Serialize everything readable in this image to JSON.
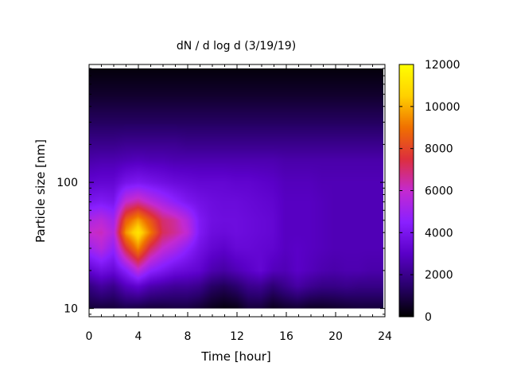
{
  "chart_data": {
    "type": "heatmap",
    "title": "dN / d log d (3/19/19)",
    "xlabel": "Time [hour]",
    "ylabel": "Particle size [nm]",
    "xlim": [
      0,
      24
    ],
    "ylim": [
      8.6,
      860
    ],
    "y_scale": "log",
    "x_ticks": [
      0,
      4,
      8,
      12,
      16,
      20,
      24
    ],
    "x_tick_labels": [
      "0",
      "4",
      "8",
      "12",
      "16",
      "20",
      "24"
    ],
    "y_ticks": [
      10,
      100
    ],
    "y_tick_labels": [
      "10",
      "100"
    ],
    "colorbar": {
      "range": [
        0,
        12000
      ],
      "ticks": [
        0,
        2000,
        4000,
        6000,
        8000,
        10000,
        12000
      ],
      "tick_labels": [
        "0",
        "2000",
        "4000",
        "6000",
        "8000",
        "10000",
        "12000"
      ],
      "colormap": [
        "#000000",
        "#2a006e",
        "#5a00c8",
        "#8a20ff",
        "#c42ad0",
        "#dd2f3d",
        "#f07000",
        "#ffd000",
        "#ffff00"
      ]
    },
    "grid": false,
    "time_hours": [
      0,
      1,
      2,
      3,
      4,
      5,
      6,
      7,
      8,
      9,
      10,
      11,
      12,
      13,
      14,
      15,
      16,
      17,
      18,
      19,
      20,
      21,
      22,
      23,
      24
    ],
    "size_nm": [
      10,
      15,
      20,
      30,
      40,
      50,
      70,
      100,
      150,
      200,
      300,
      500,
      800
    ],
    "values": [
      [
        800,
        800,
        800,
        1000,
        900,
        800,
        800,
        900,
        900,
        700,
        400,
        200,
        300,
        800,
        800,
        400,
        600,
        700,
        500,
        500,
        600,
        700,
        800,
        800,
        800
      ],
      [
        1800,
        2300,
        2000,
        2800,
        3200,
        2600,
        2400,
        2200,
        2200,
        2000,
        1400,
        1200,
        1500,
        2000,
        2100,
        1600,
        2000,
        2400,
        2100,
        1900,
        1900,
        2000,
        1900,
        1900,
        1900
      ],
      [
        3200,
        3700,
        3400,
        4400,
        5800,
        4600,
        4100,
        3600,
        3400,
        3200,
        2600,
        2400,
        2700,
        3000,
        3300,
        2800,
        2700,
        3000,
        2800,
        2600,
        2500,
        2600,
        2600,
        2500,
        2500
      ],
      [
        5000,
        5600,
        4700,
        7500,
        9400,
        7200,
        6000,
        5400,
        4600,
        3800,
        3300,
        3100,
        3400,
        3400,
        3300,
        3200,
        2900,
        3000,
        2900,
        2800,
        2700,
        2700,
        2700,
        2700,
        2700
      ],
      [
        6000,
        6200,
        5500,
        9600,
        11200,
        9200,
        7200,
        6600,
        5900,
        4200,
        3600,
        3500,
        3600,
        3500,
        3400,
        3300,
        2900,
        2900,
        2900,
        2800,
        2700,
        2700,
        2700,
        2700,
        2700
      ],
      [
        5400,
        5700,
        5100,
        8600,
        9800,
        8400,
        7000,
        6500,
        5600,
        4200,
        3700,
        3600,
        3600,
        3500,
        3400,
        3300,
        2900,
        2900,
        2900,
        2800,
        2700,
        2700,
        2700,
        2700,
        2700
      ],
      [
        4000,
        4200,
        4000,
        6000,
        6500,
        5800,
        5200,
        4600,
        4100,
        3800,
        3600,
        3500,
        3500,
        3400,
        3300,
        3200,
        2900,
        2900,
        2900,
        2800,
        2700,
        2700,
        2700,
        2700,
        2700
      ],
      [
        3200,
        3300,
        3300,
        3900,
        4100,
        3900,
        3700,
        3500,
        3400,
        3300,
        3300,
        3300,
        3200,
        3200,
        3100,
        3000,
        2800,
        2800,
        2800,
        2700,
        2700,
        2700,
        2700,
        2700,
        2700
      ],
      [
        2500,
        2600,
        2600,
        2700,
        2800,
        2700,
        2700,
        2600,
        2600,
        2600,
        2600,
        2600,
        2600,
        2600,
        2600,
        2600,
        2500,
        2500,
        2500,
        2500,
        2500,
        2500,
        2500,
        2500,
        2500
      ],
      [
        2000,
        2000,
        2000,
        2100,
        2100,
        2100,
        2100,
        2100,
        2000,
        2000,
        2000,
        2000,
        2000,
        2000,
        2000,
        2000,
        2000,
        2000,
        2000,
        2000,
        2000,
        2000,
        2000,
        2000,
        2000
      ],
      [
        1300,
        1300,
        1300,
        1300,
        1300,
        1300,
        1300,
        1300,
        1300,
        1300,
        1300,
        1300,
        1300,
        1300,
        1300,
        1300,
        1300,
        1300,
        1300,
        1300,
        1300,
        1300,
        1300,
        1300,
        1300
      ],
      [
        600,
        600,
        600,
        600,
        600,
        600,
        600,
        600,
        600,
        600,
        600,
        600,
        600,
        600,
        600,
        600,
        600,
        600,
        600,
        600,
        600,
        600,
        600,
        600,
        600
      ],
      [
        150,
        150,
        150,
        150,
        150,
        150,
        150,
        150,
        150,
        150,
        150,
        150,
        150,
        150,
        150,
        150,
        150,
        150,
        150,
        150,
        150,
        150,
        150,
        150,
        150
      ]
    ]
  }
}
